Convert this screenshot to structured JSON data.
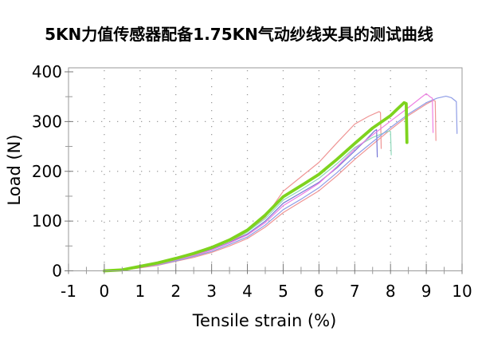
{
  "chart_data": {
    "type": "line",
    "title": "5KN力值传感器配备1.75KN气动纱线夹具的测试曲线",
    "xlabel": "Tensile strain (%)",
    "ylabel": "Load (N)",
    "xlim": [
      -1,
      10
    ],
    "ylim": [
      0,
      400
    ],
    "x_ticks": [
      -1,
      0,
      1,
      2,
      3,
      4,
      5,
      6,
      7,
      8,
      9,
      10
    ],
    "x_tick_labels": [
      "-1",
      "0",
      "1",
      "2",
      "3",
      "4",
      "5",
      "6",
      "7",
      "8",
      "9",
      "10"
    ],
    "x_minor_step": 0.5,
    "y_ticks": [
      0,
      100,
      200,
      300,
      400
    ],
    "y_tick_labels": [
      "0",
      "100",
      "200",
      "300",
      "400"
    ],
    "y_minor_step": 50,
    "grid": "dotted gridlines at major ticks",
    "legend": "none",
    "background_color": "#ffffff",
    "series": [
      {
        "name": "red-a",
        "color": "#ef9494",
        "width": 1.2,
        "points": [
          [
            0,
            0
          ],
          [
            0.5,
            1
          ],
          [
            1,
            7
          ],
          [
            1.5,
            13
          ],
          [
            2,
            21
          ],
          [
            2.5,
            30
          ],
          [
            3,
            42
          ],
          [
            3.5,
            57
          ],
          [
            4,
            78
          ],
          [
            4.5,
            108
          ],
          [
            5,
            160
          ],
          [
            5.5,
            189
          ],
          [
            6,
            218
          ],
          [
            6.5,
            257
          ],
          [
            7,
            295
          ],
          [
            7.4,
            311
          ],
          [
            7.68,
            320
          ],
          [
            7.72,
            318
          ],
          [
            7.74,
            246
          ]
        ]
      },
      {
        "name": "red-b",
        "color": "#ef9494",
        "width": 1.2,
        "points": [
          [
            0,
            0
          ],
          [
            0.5,
            1
          ],
          [
            1,
            6
          ],
          [
            1.5,
            11
          ],
          [
            2,
            19
          ],
          [
            2.5,
            27
          ],
          [
            3,
            37
          ],
          [
            3.5,
            50
          ],
          [
            4,
            65
          ],
          [
            4.5,
            88
          ],
          [
            5,
            117
          ],
          [
            5.5,
            139
          ],
          [
            6,
            161
          ],
          [
            6.5,
            191
          ],
          [
            7,
            224
          ],
          [
            7.5,
            254
          ],
          [
            8,
            284
          ],
          [
            8.5,
            312
          ],
          [
            9,
            335
          ],
          [
            9.2,
            343
          ],
          [
            9.25,
            341
          ],
          [
            9.27,
            262
          ]
        ]
      },
      {
        "name": "teal",
        "color": "#8fd9ba",
        "width": 1.2,
        "points": [
          [
            0,
            0
          ],
          [
            0.5,
            1
          ],
          [
            1,
            8
          ],
          [
            1.5,
            15
          ],
          [
            2,
            23
          ],
          [
            2.5,
            33
          ],
          [
            3,
            45
          ],
          [
            3.5,
            60
          ],
          [
            4,
            78
          ],
          [
            4.5,
            105
          ],
          [
            5,
            142
          ],
          [
            5.5,
            163
          ],
          [
            6,
            186
          ],
          [
            6.5,
            215
          ],
          [
            7,
            248
          ],
          [
            7.5,
            268
          ],
          [
            7.95,
            281
          ],
          [
            8.0,
            280
          ],
          [
            8.02,
            233
          ]
        ]
      },
      {
        "name": "blue-a",
        "color": "#7676d6",
        "width": 1.2,
        "points": [
          [
            0,
            0
          ],
          [
            0.5,
            1
          ],
          [
            1,
            8
          ],
          [
            1.5,
            14
          ],
          [
            2,
            22
          ],
          [
            2.5,
            32
          ],
          [
            3,
            43
          ],
          [
            3.5,
            57
          ],
          [
            4,
            74
          ],
          [
            4.5,
            100
          ],
          [
            5,
            136
          ],
          [
            5.5,
            157
          ],
          [
            6,
            178
          ],
          [
            6.5,
            207
          ],
          [
            7,
            241
          ],
          [
            7.3,
            262
          ],
          [
            7.55,
            281
          ],
          [
            7.61,
            284
          ],
          [
            7.63,
            229
          ]
        ]
      },
      {
        "name": "blue-b",
        "color": "#8f9de6",
        "width": 1.2,
        "points": [
          [
            0,
            0
          ],
          [
            0.5,
            1
          ],
          [
            1,
            7
          ],
          [
            1.5,
            12
          ],
          [
            2,
            20
          ],
          [
            2.5,
            29
          ],
          [
            3,
            39
          ],
          [
            3.5,
            53
          ],
          [
            4,
            68
          ],
          [
            4.5,
            92
          ],
          [
            5,
            123
          ],
          [
            5.5,
            144
          ],
          [
            6,
            167
          ],
          [
            6.5,
            197
          ],
          [
            7,
            230
          ],
          [
            7.5,
            259
          ],
          [
            8,
            288
          ],
          [
            8.5,
            315
          ],
          [
            9,
            338
          ],
          [
            9.3,
            347
          ],
          [
            9.55,
            351
          ],
          [
            9.7,
            348
          ],
          [
            9.84,
            340
          ],
          [
            9.86,
            276
          ]
        ]
      },
      {
        "name": "magenta",
        "color": "#ee7fe2",
        "width": 1.2,
        "points": [
          [
            0,
            0
          ],
          [
            0.5,
            1
          ],
          [
            1,
            7
          ],
          [
            1.5,
            13
          ],
          [
            2,
            22
          ],
          [
            2.5,
            31
          ],
          [
            3,
            42
          ],
          [
            3.5,
            56
          ],
          [
            4,
            72
          ],
          [
            4.5,
            97
          ],
          [
            5,
            131
          ],
          [
            5.5,
            153
          ],
          [
            6,
            176
          ],
          [
            6.5,
            209
          ],
          [
            7,
            245
          ],
          [
            7.5,
            273
          ],
          [
            8,
            301
          ],
          [
            8.5,
            328
          ],
          [
            8.85,
            348
          ],
          [
            9.0,
            356
          ],
          [
            9.1,
            350
          ],
          [
            9.17,
            347
          ],
          [
            9.19,
            278
          ]
        ]
      },
      {
        "name": "green-main",
        "color": "#7ed31e",
        "width": 3.8,
        "points": [
          [
            0,
            0
          ],
          [
            0.5,
            2
          ],
          [
            1,
            9
          ],
          [
            1.5,
            16
          ],
          [
            2,
            25
          ],
          [
            2.5,
            35
          ],
          [
            3,
            47
          ],
          [
            3.5,
            62
          ],
          [
            4,
            82
          ],
          [
            4.5,
            112
          ],
          [
            5,
            149
          ],
          [
            5.5,
            171
          ],
          [
            6,
            194
          ],
          [
            6.5,
            224
          ],
          [
            7,
            256
          ],
          [
            7.5,
            287
          ],
          [
            8,
            312
          ],
          [
            8.2,
            326
          ],
          [
            8.38,
            338
          ],
          [
            8.44,
            336
          ],
          [
            8.46,
            258
          ]
        ]
      }
    ]
  }
}
